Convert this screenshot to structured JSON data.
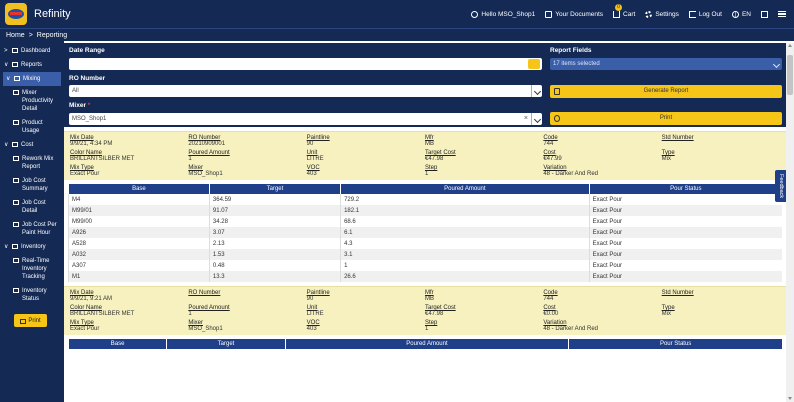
{
  "app": {
    "title": "Refinity"
  },
  "topnav": {
    "user": "Hello MSO_Shop1",
    "documents": "Your Documents",
    "cart": "Cart",
    "cart_count": "0",
    "settings": "Settings",
    "logout": "Log Out",
    "language": "EN"
  },
  "breadcrumb": {
    "home": "Home",
    "separator": ">",
    "current": "Reporting"
  },
  "sidebar": {
    "dashboard": "Dashboard",
    "reports": "Reports",
    "mixing": "Mixing",
    "mixer_productivity": "Mixer Productivity Detail",
    "product_usage": "Product Usage",
    "cost": "Cost",
    "rework_mix": "Rework Mix Report",
    "job_cost_summary": "Job Cost Summary",
    "job_cost_detail": "Job Cost Detail",
    "job_cost_per_paint_hour": "Job Cost Per Paint Hour",
    "inventory": "Inventory",
    "realtime_inventory": "Real-Time Inventory Tracking",
    "inventory_status": "Inventory Status",
    "print": "Print"
  },
  "filters": {
    "date_range_label": "Date Range",
    "date_range_value": "",
    "ro_number_label": "RO Number",
    "ro_number_value": "All",
    "mixer_label": "Mixer",
    "mixer_required": "*",
    "mixer_value": "MSO_Shop1",
    "clear": "×",
    "report_fields_label": "Report Fields",
    "report_fields_value": "17 items selected",
    "generate_button": "Generate Report",
    "print_button": "Print"
  },
  "mix_labels": {
    "mix_date": "Mix Date",
    "ro_number": "RO Number",
    "paintline": "Paintline",
    "mfr": "Mfr",
    "code": "Code",
    "std_number": "Std Number",
    "color_name": "Color Name",
    "poured_amount": "Poured Amount",
    "unit": "Unit",
    "target_cost": "Target Cost",
    "cost": "Cost",
    "type": "Type",
    "mix_type": "Mix Type",
    "mixer": "Mixer",
    "voc": "VOC",
    "step": "Step",
    "variation": "Variation"
  },
  "table_headers": {
    "base": "Base",
    "target": "Target",
    "poured_amount": "Poured Amount",
    "pour_status": "Pour Status"
  },
  "mixes": [
    {
      "mix_date": "9/9/21, 4:34 PM",
      "ro_number": "20210909001",
      "paintline": "90",
      "mfr": "MB",
      "code": "744",
      "std_number": "",
      "color_name": "BRILLANTSILBER MET",
      "poured_amount": "1",
      "unit": "LITRE",
      "target_cost": "€47.98",
      "cost": "€47.99",
      "type": "Mix",
      "mix_type": "Exact Pour",
      "mixer": "MSO_Shop1",
      "voc": "403",
      "step": "1",
      "variation": "48 - Darker And Red",
      "rows": [
        {
          "base": "M4",
          "target": "364.59",
          "poured": "729.2",
          "status": "Exact Pour"
        },
        {
          "base": "M99/01",
          "target": "91.07",
          "poured": "182.1",
          "status": "Exact Pour"
        },
        {
          "base": "M99/00",
          "target": "34.28",
          "poured": "68.6",
          "status": "Exact Pour"
        },
        {
          "base": "A926",
          "target": "3.07",
          "poured": "6.1",
          "status": "Exact Pour"
        },
        {
          "base": "A528",
          "target": "2.13",
          "poured": "4.3",
          "status": "Exact Pour"
        },
        {
          "base": "A032",
          "target": "1.53",
          "poured": "3.1",
          "status": "Exact Pour"
        },
        {
          "base": "A307",
          "target": "0.48",
          "poured": "1",
          "status": "Exact Pour"
        },
        {
          "base": "M1",
          "target": "13.3",
          "poured": "26.6",
          "status": "Exact Pour"
        }
      ]
    },
    {
      "mix_date": "9/9/21, 9:21 AM",
      "ro_number": "",
      "paintline": "90",
      "mfr": "MB",
      "code": "744",
      "std_number": "",
      "color_name": "BRILLANTSILBER MET",
      "poured_amount": "1",
      "unit": "LITRE",
      "target_cost": "€47.98",
      "cost": "€0.00",
      "type": "Mix",
      "mix_type": "Exact Pour",
      "mixer": "MSO_Shop1",
      "voc": "403",
      "step": "1",
      "variation": "48 - Darker And Red",
      "rows": []
    }
  ],
  "feedback": "Feedback"
}
